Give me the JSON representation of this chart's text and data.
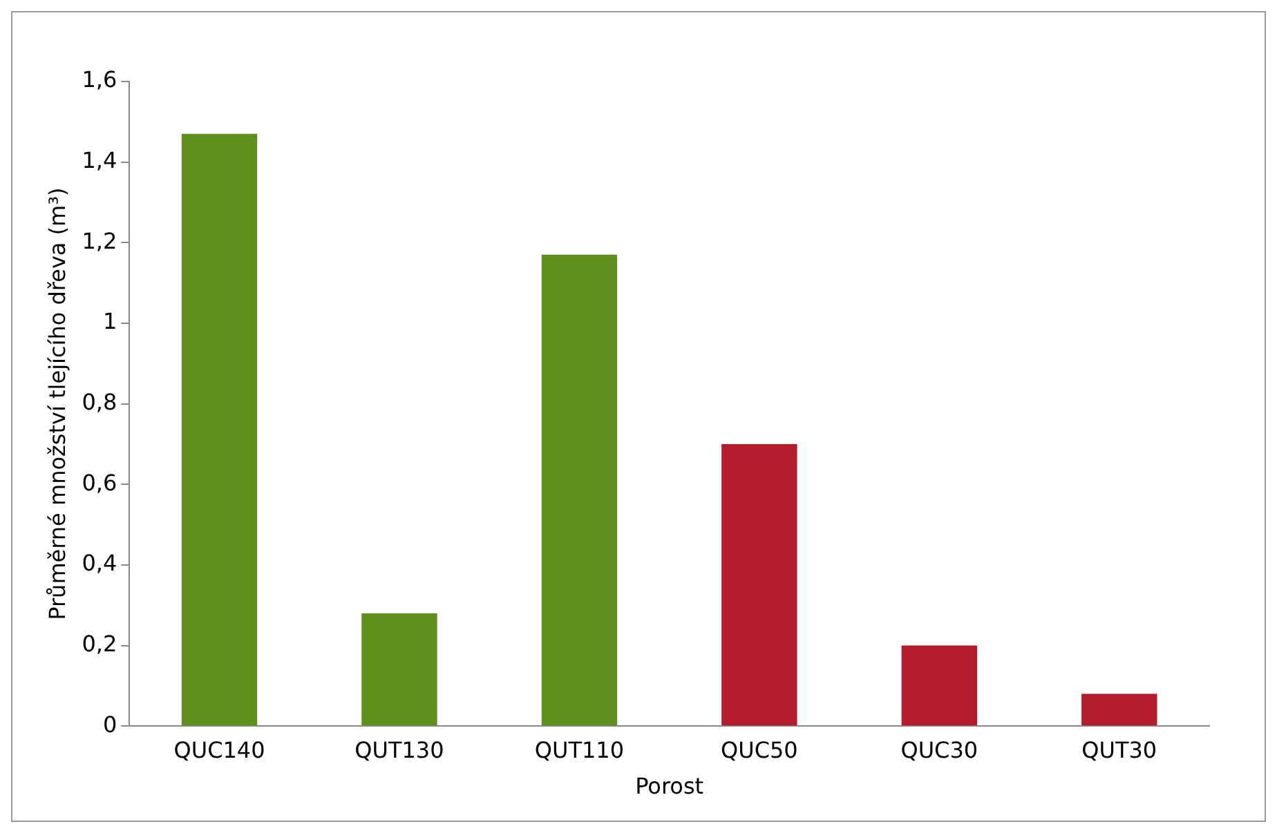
{
  "chart_data": {
    "type": "bar",
    "xlabel": "Porost",
    "ylabel": "Průměrné množství tlejícího dřeva (m³)",
    "categories": [
      "QUC140",
      "QUT130",
      "QUT110",
      "QUC50",
      "QUC30",
      "QUT30"
    ],
    "values": [
      1.47,
      0.28,
      1.17,
      0.7,
      0.2,
      0.08
    ],
    "colors": [
      "#5f8f1c",
      "#5f8f1c",
      "#5f8f1c",
      "#b41c2c",
      "#b41c2c",
      "#b41c2c"
    ],
    "ylim": [
      0,
      1.6
    ],
    "yticks": [
      0,
      {
        "value": 0.2,
        "label": "0,2"
      },
      {
        "value": 0.4,
        "label": "0,4"
      },
      {
        "value": 0.6,
        "label": "0,6"
      },
      {
        "value": 0.8,
        "label": "0,8"
      },
      1,
      {
        "value": 1.2,
        "label": "1,2"
      },
      {
        "value": 1.4,
        "label": "1,4"
      },
      {
        "value": 1.6,
        "label": "1,6"
      }
    ],
    "grid": false,
    "legend": false
  }
}
